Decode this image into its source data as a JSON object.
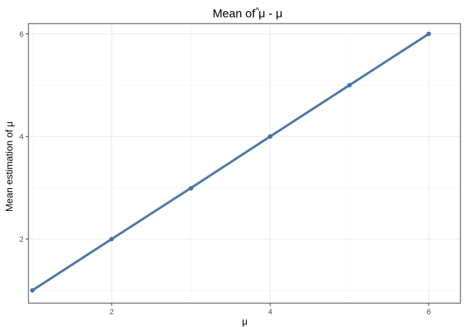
{
  "chart_data": {
    "type": "line",
    "title": {
      "prefix": "Mean of ",
      "symbol": "μ",
      "hat": "^",
      "suffix": " - μ"
    },
    "xlabel": "μ",
    "ylabel": "Mean estimation of μ",
    "xlim": [
      0.95,
      6.4
    ],
    "ylim": [
      0.75,
      6.2
    ],
    "x_ticks": [
      2,
      4,
      6
    ],
    "y_ticks": [
      2,
      4,
      6
    ],
    "x_minor_ticks": [
      1,
      3,
      5
    ],
    "y_minor_ticks": [
      1,
      3,
      5
    ],
    "grid": true,
    "series": [
      {
        "x": [
          1,
          2,
          3,
          4,
          5,
          6
        ],
        "y": [
          1.0,
          2.0,
          2.99,
          4.0,
          5.0,
          6.0
        ],
        "color": "#4472A8",
        "marker": "circle"
      }
    ],
    "trend_line": {
      "x": [
        1,
        6
      ],
      "y": [
        1.0,
        6.0
      ],
      "color": "#9EB5D2"
    }
  }
}
